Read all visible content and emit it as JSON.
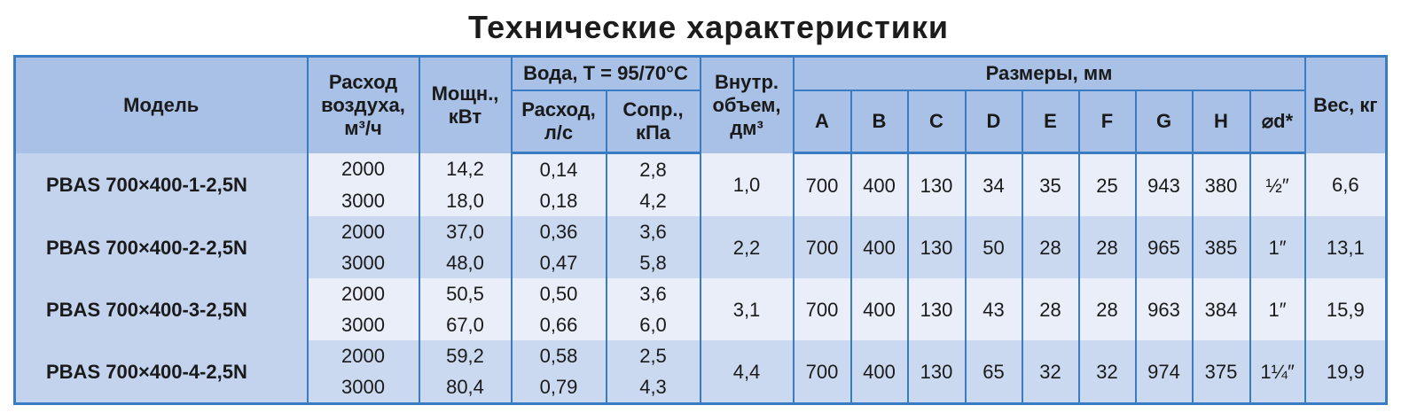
{
  "title": "Технические характеристики",
  "header": {
    "model": "Модель",
    "airflow": "Расход воздуха, м³/ч",
    "power": "Мощн., кВт",
    "water": "Вода, T = 95/70°C",
    "water_flow": "Расход, л/с",
    "resistance": "Сопр., кПа",
    "volume": "Внутр. объем, дм³",
    "dimensions": "Размеры, мм",
    "dims": [
      "A",
      "B",
      "C",
      "D",
      "E",
      "F",
      "G",
      "H",
      "⌀d*"
    ],
    "weight": "Вес, кг"
  },
  "rows": [
    {
      "model": "PBAS 700×400-1-2,5N",
      "airflow": [
        "2000",
        "3000"
      ],
      "power": [
        "14,2",
        "18,0"
      ],
      "water_flow": [
        "0,14",
        "0,18"
      ],
      "resistance": [
        "2,8",
        "4,2"
      ],
      "volume": "1,0",
      "dims": [
        "700",
        "400",
        "130",
        "34",
        "35",
        "25",
        "943",
        "380",
        "½″"
      ],
      "weight": "6,6"
    },
    {
      "model": "PBAS 700×400-2-2,5N",
      "airflow": [
        "2000",
        "3000"
      ],
      "power": [
        "37,0",
        "48,0"
      ],
      "water_flow": [
        "0,36",
        "0,47"
      ],
      "resistance": [
        "3,6",
        "5,8"
      ],
      "volume": "2,2",
      "dims": [
        "700",
        "400",
        "130",
        "50",
        "28",
        "28",
        "965",
        "385",
        "1″"
      ],
      "weight": "13,1"
    },
    {
      "model": "PBAS 700×400-3-2,5N",
      "airflow": [
        "2000",
        "3000"
      ],
      "power": [
        "50,5",
        "67,0"
      ],
      "water_flow": [
        "0,50",
        "0,66"
      ],
      "resistance": [
        "3,6",
        "6,0"
      ],
      "volume": "3,1",
      "dims": [
        "700",
        "400",
        "130",
        "43",
        "28",
        "28",
        "963",
        "384",
        "1″"
      ],
      "weight": "15,9"
    },
    {
      "model": "PBAS 700×400-4-2,5N",
      "airflow": [
        "2000",
        "3000"
      ],
      "power": [
        "59,2",
        "80,4"
      ],
      "water_flow": [
        "0,58",
        "0,79"
      ],
      "resistance": [
        "2,5",
        "4,3"
      ],
      "volume": "4,4",
      "dims": [
        "700",
        "400",
        "130",
        "65",
        "32",
        "32",
        "974",
        "375",
        "1¼″"
      ],
      "weight": "19,9"
    }
  ]
}
